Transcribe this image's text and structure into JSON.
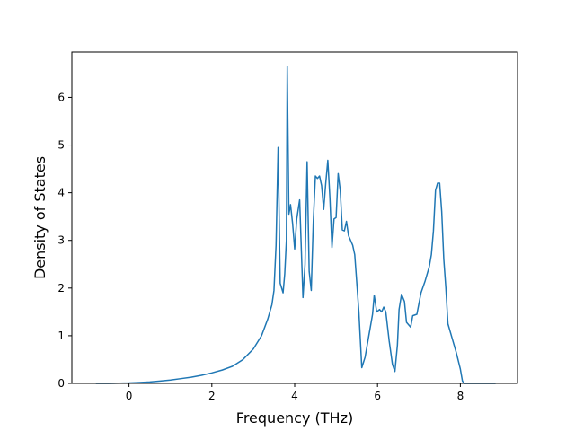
{
  "chart_data": {
    "type": "line",
    "xlabel": "Frequency (THz)",
    "ylabel": "Density of States",
    "xlim": [
      -1.38,
      9.38
    ],
    "ylim": [
      0,
      6.95
    ],
    "xticks": [
      0,
      2,
      4,
      6,
      8
    ],
    "yticks": [
      0,
      1,
      2,
      3,
      4,
      5,
      6
    ],
    "grid": false,
    "line_color": "#1f77b4",
    "series": [
      {
        "x": [
          -0.8,
          -0.5,
          0,
          0.25,
          0.5,
          0.75,
          1.0,
          1.25,
          1.5,
          1.75,
          2.0,
          2.25,
          2.5,
          2.75,
          3.0,
          3.2,
          3.35,
          3.45,
          3.5,
          3.55,
          3.6,
          3.65,
          3.72,
          3.76,
          3.8,
          3.82,
          3.86,
          3.9,
          3.95,
          4.0,
          4.05,
          4.12,
          4.2,
          4.25,
          4.3,
          4.35,
          4.4,
          4.45,
          4.5,
          4.55,
          4.6,
          4.65,
          4.7,
          4.75,
          4.8,
          4.85,
          4.9,
          4.95,
          5.0,
          5.05,
          5.1,
          5.15,
          5.2,
          5.25,
          5.3,
          5.4,
          5.45,
          5.55,
          5.62,
          5.7,
          5.78,
          5.85,
          5.88,
          5.92,
          5.98,
          6.05,
          6.1,
          6.15,
          6.2,
          6.28,
          6.36,
          6.42,
          6.48,
          6.52,
          6.58,
          6.65,
          6.7,
          6.8,
          6.85,
          6.95,
          7.05,
          7.15,
          7.25,
          7.3,
          7.35,
          7.4,
          7.45,
          7.5,
          7.55,
          7.6,
          7.65,
          7.7,
          7.8,
          7.9,
          8.0,
          8.05,
          8.1,
          8.3,
          8.6,
          8.85
        ],
        "y": [
          0,
          0,
          0.01,
          0.02,
          0.03,
          0.05,
          0.07,
          0.1,
          0.13,
          0.17,
          0.22,
          0.28,
          0.36,
          0.5,
          0.72,
          1.0,
          1.35,
          1.65,
          1.95,
          2.9,
          4.95,
          2.1,
          1.9,
          2.3,
          3.0,
          6.65,
          3.55,
          3.75,
          3.35,
          2.82,
          3.45,
          3.85,
          1.8,
          2.5,
          4.65,
          2.35,
          1.95,
          3.4,
          4.35,
          4.3,
          4.35,
          4.15,
          3.65,
          4.2,
          4.68,
          3.9,
          2.85,
          3.45,
          3.48,
          4.4,
          4.05,
          3.22,
          3.2,
          3.4,
          3.1,
          2.9,
          2.7,
          1.5,
          0.33,
          0.55,
          0.95,
          1.3,
          1.45,
          1.85,
          1.5,
          1.55,
          1.5,
          1.6,
          1.5,
          0.9,
          0.4,
          0.25,
          0.8,
          1.55,
          1.87,
          1.72,
          1.28,
          1.18,
          1.42,
          1.45,
          1.9,
          2.15,
          2.45,
          2.7,
          3.2,
          4.05,
          4.2,
          4.2,
          3.6,
          2.6,
          2.0,
          1.25,
          0.95,
          0.65,
          0.3,
          0.05,
          0,
          0,
          0,
          0
        ]
      }
    ]
  }
}
